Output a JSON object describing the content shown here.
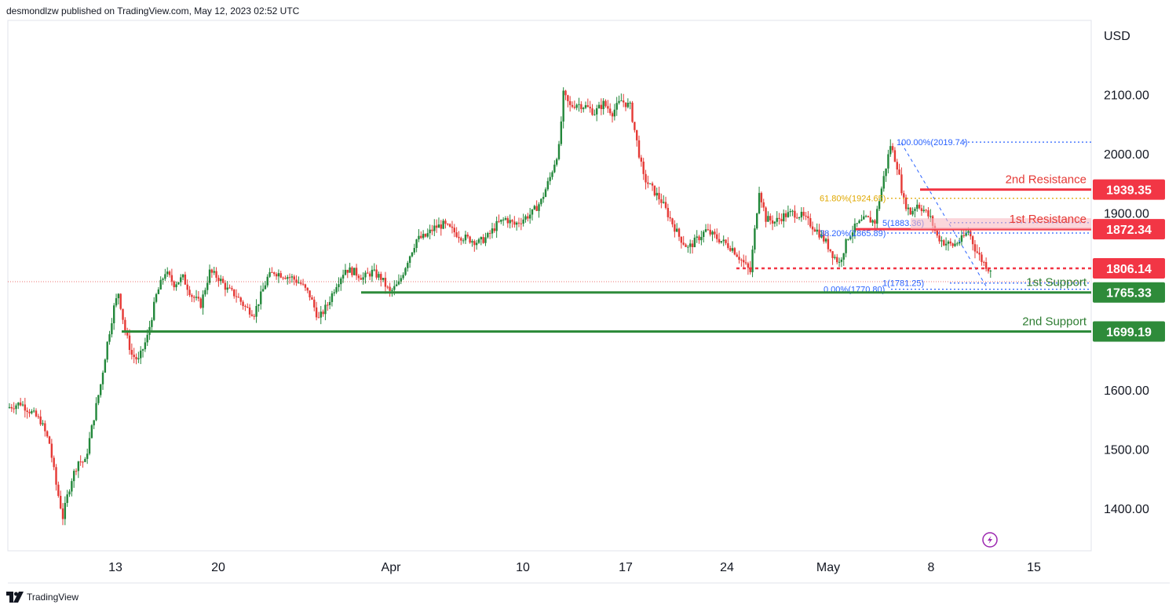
{
  "header": {
    "publisher_text": "desmondlzw published on TradingView.com, May 12, 2023 02:52 UTC"
  },
  "footer": {
    "brand": "TradingView"
  },
  "colors": {
    "up": "#22873a",
    "down": "#e53935",
    "resistance": "#f23645",
    "support": "#2e8b3a",
    "fib": "#2962ff",
    "fib_golden": "#e0a800"
  },
  "chart_data": {
    "type": "candlestick",
    "currency_label": "USD",
    "y_ticks": [
      "2100.00",
      "2000.00",
      "1900.00",
      "1600.00",
      "1500.00",
      "1400.00"
    ],
    "x_ticks": [
      "13",
      "20",
      "Apr",
      "10",
      "17",
      "24",
      "May",
      "8",
      "15"
    ],
    "ylim": [
      1340,
      2200
    ],
    "levels": [
      {
        "label": "2nd Resistance",
        "value": 1939.35,
        "value_text": "1939.35",
        "type": "resistance"
      },
      {
        "label": "1st Resistance",
        "value": 1872.34,
        "value_text": "1872.34",
        "type": "resistance"
      },
      {
        "label": "",
        "value": 1806.14,
        "value_text": "1806.14",
        "type": "pivot"
      },
      {
        "label": "1st Support",
        "value": 1765.33,
        "value_text": "1765.33",
        "type": "support"
      },
      {
        "label": "2nd Support",
        "value": 1699.19,
        "value_text": "1699.19",
        "type": "support"
      }
    ],
    "fib_levels": [
      {
        "label": "100.00%(2019.74)",
        "value": 2019.74
      },
      {
        "label": "61.80%(1924.65)",
        "value": 1924.65
      },
      {
        "label": "5(1883.36)",
        "value": 1883.36
      },
      {
        "label": "38.20%(1865.89)",
        "value": 1865.89
      },
      {
        "label": "1(1781.25)",
        "value": 1781.25
      },
      {
        "label": "0.00%(1770.80)",
        "value": 1770.8
      }
    ],
    "last_price": 1806.14,
    "path_points": [
      [
        0,
        1570
      ],
      [
        12,
        1578
      ],
      [
        22,
        1562
      ],
      [
        30,
        1548
      ],
      [
        38,
        1510
      ],
      [
        44,
        1440
      ],
      [
        50,
        1385
      ],
      [
        54,
        1420
      ],
      [
        58,
        1450
      ],
      [
        64,
        1480
      ],
      [
        70,
        1478
      ],
      [
        78,
        1555
      ],
      [
        84,
        1610
      ],
      [
        90,
        1680
      ],
      [
        96,
        1740
      ],
      [
        100,
        1765
      ],
      [
        106,
        1700
      ],
      [
        112,
        1660
      ],
      [
        118,
        1650
      ],
      [
        126,
        1690
      ],
      [
        134,
        1760
      ],
      [
        142,
        1800
      ],
      [
        150,
        1780
      ],
      [
        158,
        1790
      ],
      [
        166,
        1760
      ],
      [
        174,
        1745
      ],
      [
        182,
        1800
      ],
      [
        190,
        1790
      ],
      [
        198,
        1770
      ],
      [
        206,
        1760
      ],
      [
        214,
        1740
      ],
      [
        222,
        1730
      ],
      [
        228,
        1760
      ],
      [
        234,
        1790
      ],
      [
        240,
        1800
      ],
      [
        248,
        1795
      ],
      [
        256,
        1790
      ],
      [
        264,
        1780
      ],
      [
        272,
        1760
      ],
      [
        280,
        1720
      ],
      [
        288,
        1745
      ],
      [
        296,
        1780
      ],
      [
        304,
        1805
      ],
      [
        312,
        1800
      ],
      [
        320,
        1790
      ],
      [
        328,
        1800
      ],
      [
        336,
        1790
      ],
      [
        344,
        1765
      ],
      [
        352,
        1780
      ],
      [
        360,
        1820
      ],
      [
        368,
        1855
      ],
      [
        376,
        1860
      ],
      [
        384,
        1875
      ],
      [
        392,
        1880
      ],
      [
        400,
        1870
      ],
      [
        408,
        1860
      ],
      [
        416,
        1855
      ],
      [
        424,
        1850
      ],
      [
        432,
        1860
      ],
      [
        440,
        1880
      ],
      [
        448,
        1890
      ],
      [
        456,
        1880
      ],
      [
        464,
        1890
      ],
      [
        472,
        1900
      ],
      [
        480,
        1920
      ],
      [
        488,
        1960
      ],
      [
        496,
        2010
      ],
      [
        500,
        2100
      ],
      [
        506,
        2080
      ],
      [
        512,
        2085
      ],
      [
        520,
        2080
      ],
      [
        528,
        2070
      ],
      [
        536,
        2085
      ],
      [
        544,
        2070
      ],
      [
        552,
        2090
      ],
      [
        560,
        2080
      ],
      [
        566,
        2020
      ],
      [
        572,
        1960
      ],
      [
        580,
        1940
      ],
      [
        588,
        1920
      ],
      [
        596,
        1890
      ],
      [
        604,
        1860
      ],
      [
        612,
        1840
      ],
      [
        620,
        1855
      ],
      [
        628,
        1870
      ],
      [
        636,
        1860
      ],
      [
        644,
        1850
      ],
      [
        652,
        1840
      ],
      [
        660,
        1820
      ],
      [
        668,
        1800
      ],
      [
        672,
        1870
      ],
      [
        676,
        1940
      ],
      [
        682,
        1890
      ],
      [
        690,
        1885
      ],
      [
        698,
        1895
      ],
      [
        706,
        1900
      ],
      [
        714,
        1895
      ],
      [
        720,
        1885
      ],
      [
        728,
        1870
      ],
      [
        736,
        1850
      ],
      [
        742,
        1830
      ],
      [
        748,
        1815
      ],
      [
        756,
        1860
      ],
      [
        764,
        1880
      ],
      [
        772,
        1890
      ],
      [
        780,
        1885
      ],
      [
        788,
        1960
      ],
      [
        794,
        2015
      ],
      [
        800,
        1980
      ],
      [
        806,
        1920
      ],
      [
        812,
        1900
      ],
      [
        818,
        1915
      ],
      [
        824,
        1905
      ],
      [
        830,
        1890
      ],
      [
        836,
        1860
      ],
      [
        842,
        1850
      ],
      [
        850,
        1845
      ],
      [
        858,
        1855
      ],
      [
        864,
        1870
      ],
      [
        870,
        1840
      ],
      [
        876,
        1820
      ],
      [
        882,
        1806
      ]
    ]
  }
}
